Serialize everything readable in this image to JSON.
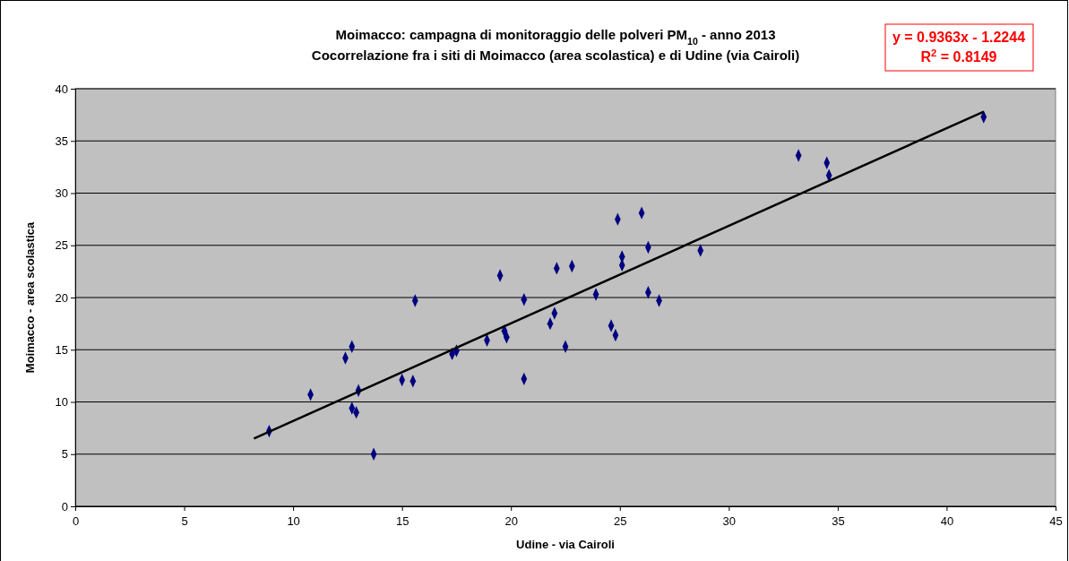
{
  "chart_data": {
    "type": "scatter",
    "title": "Moimacco: campagna di monitoraggio delle polveri PM$_{10}$ - anno 2013",
    "subtitle": "Cocorrelazione fra i siti di Moimacco (area scolastica) e di Udine (via Cairoli)",
    "xlabel": "Udine - via Cairoli",
    "ylabel": "Moimacco - area scolastica",
    "annotations": [
      "y = 0.9363x - 1.2244",
      "R$^{2}$ = 0.8149"
    ],
    "xlim": [
      0,
      45
    ],
    "xticks": [
      0,
      5,
      10,
      15,
      20,
      25,
      30,
      35,
      40,
      45
    ],
    "ylim": [
      0,
      40
    ],
    "yticks": [
      0,
      5,
      10,
      15,
      20,
      25,
      30,
      35,
      40
    ],
    "grid": "y",
    "marker": "diamond",
    "series": [
      {
        "type": "scatter",
        "color": "#000080",
        "x": [
          8.9,
          10.8,
          12.4,
          12.7,
          13.0,
          12.7,
          12.9,
          13.7,
          15.0,
          15.5,
          15.6,
          17.3,
          17.5,
          18.9,
          19.5,
          19.7,
          19.8,
          20.6,
          20.6,
          21.8,
          22.0,
          22.1,
          22.5,
          22.8,
          23.9,
          24.6,
          24.8,
          24.9,
          25.1,
          25.1,
          26.0,
          26.3,
          26.3,
          26.8,
          28.7,
          33.2,
          34.5,
          34.6,
          41.7
        ],
        "values": [
          7.2,
          10.7,
          14.2,
          15.3,
          11.1,
          9.4,
          9.0,
          5.0,
          12.1,
          12.0,
          19.7,
          14.6,
          14.9,
          15.9,
          22.1,
          16.8,
          16.2,
          19.8,
          12.2,
          17.5,
          18.5,
          22.8,
          15.3,
          23.0,
          20.3,
          17.3,
          16.4,
          27.5,
          23.9,
          23.1,
          28.1,
          24.8,
          20.5,
          19.7,
          24.5,
          33.6,
          32.9,
          31.7,
          37.3
        ]
      },
      {
        "type": "line",
        "color": "#000000",
        "marker": "none",
        "line_style": "solid",
        "x": [
          8.2,
          41.7
        ],
        "values": [
          6.5,
          37.8
        ]
      }
    ]
  }
}
